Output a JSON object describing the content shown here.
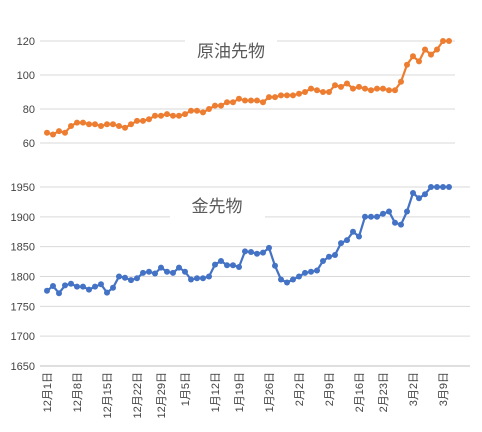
{
  "chart_data": [
    {
      "type": "line",
      "title": "原油先物",
      "ylim": [
        60,
        120
      ],
      "yticks": [
        60,
        80,
        100,
        120
      ],
      "ytick_labels": [
        "60",
        "80",
        "100",
        "120"
      ],
      "color": "#ed7d31",
      "grid": true,
      "series": [
        {
          "x": [
            "12月1日",
            "12月2日",
            "12月3日",
            "12月6日",
            "12月7日",
            "12月8日",
            "12月9日",
            "12月10日",
            "12月13日",
            "12月14日",
            "12月15日",
            "12月16日",
            "12月17日",
            "12月20日",
            "12月21日",
            "12月22日",
            "12月23日",
            "12月27日",
            "12月28日",
            "12月29日",
            "12月30日",
            "12月31日",
            "1月4日",
            "1月5日",
            "1月6日",
            "1月7日",
            "1月10日",
            "1月11日",
            "1月12日",
            "1月13日",
            "1月14日",
            "1月18日",
            "1月19日",
            "1月20日",
            "1月21日",
            "1月24日",
            "1月25日",
            "1月26日",
            "1月27日",
            "1月28日",
            "1月31日",
            "2月1日",
            "2月2日",
            "2月3日",
            "2月4日",
            "2月7日",
            "2月8日",
            "2月9日",
            "2月10日",
            "2月11日",
            "2月14日",
            "2月15日",
            "2月16日",
            "2月17日",
            "2月18日",
            "2月22日",
            "2月23日",
            "2月24日",
            "2月25日",
            "2月28日",
            "3月1日",
            "3月2日",
            "3月3日",
            "3月4日",
            "3月7日",
            "3月8日",
            "3月9日",
            "3月10日"
          ],
          "values": [
            66,
            65,
            67,
            66,
            70,
            72,
            72,
            71,
            71,
            70,
            71,
            71,
            70,
            69,
            71,
            73,
            73,
            74,
            76,
            76,
            77,
            76,
            76,
            77,
            79,
            79,
            78,
            80,
            82,
            82,
            84,
            84,
            86,
            85,
            85,
            85,
            84,
            87,
            87,
            88,
            88,
            88,
            89,
            90,
            92,
            91,
            90,
            90,
            94,
            93,
            95,
            92,
            93,
            92,
            91,
            92,
            92,
            91,
            91,
            96,
            106,
            111,
            108,
            115,
            112,
            115,
            120,
            120
          ]
        }
      ]
    },
    {
      "type": "line",
      "title": "金先物",
      "ylim": [
        1650,
        1950
      ],
      "yticks": [
        1650,
        1700,
        1750,
        1800,
        1850,
        1900,
        1950
      ],
      "ytick_labels": [
        "1650",
        "1700",
        "1750",
        "1800",
        "1850",
        "1900",
        "1950"
      ],
      "color": "#4472c4",
      "grid": true,
      "xtick_labels": [
        "12月1日",
        "12月8日",
        "12月15日",
        "12月22日",
        "12月29日",
        "1月5日",
        "1月12日",
        "1月19日",
        "1月26日",
        "2月2日",
        "2月9日",
        "2月16日",
        "2月23日",
        "3月2日",
        "3月9日"
      ],
      "series": [
        {
          "x": [
            "12月1日",
            "12月2日",
            "12月3日",
            "12月6日",
            "12月7日",
            "12月8日",
            "12月9日",
            "12月10日",
            "12月13日",
            "12月14日",
            "12月15日",
            "12月16日",
            "12月17日",
            "12月20日",
            "12月21日",
            "12月22日",
            "12月23日",
            "12月27日",
            "12月28日",
            "12月29日",
            "12月30日",
            "12月31日",
            "1月4日",
            "1月5日",
            "1月6日",
            "1月7日",
            "1月10日",
            "1月11日",
            "1月12日",
            "1月13日",
            "1月14日",
            "1月18日",
            "1月19日",
            "1月20日",
            "1月21日",
            "1月24日",
            "1月25日",
            "1月26日",
            "1月27日",
            "1月28日",
            "1月31日",
            "2月1日",
            "2月2日",
            "2月3日",
            "2月4日",
            "2月7日",
            "2月8日",
            "2月9日",
            "2月10日",
            "2月11日",
            "2月14日",
            "2月15日",
            "2月16日",
            "2月17日",
            "2月18日",
            "2月22日",
            "2月23日",
            "2月24日",
            "2月25日",
            "2月28日",
            "3月1日",
            "3月2日",
            "3月3日",
            "3月4日",
            "3月7日",
            "3月8日",
            "3月9日",
            "3月10日"
          ],
          "values": [
            1776,
            1784,
            1772,
            1785,
            1788,
            1783,
            1783,
            1778,
            1783,
            1787,
            1773,
            1781,
            1800,
            1798,
            1794,
            1797,
            1806,
            1808,
            1805,
            1815,
            1808,
            1806,
            1815,
            1808,
            1795,
            1797,
            1797,
            1800,
            1820,
            1826,
            1819,
            1819,
            1816,
            1842,
            1841,
            1838,
            1840,
            1848,
            1818,
            1795,
            1790,
            1795,
            1800,
            1806,
            1808,
            1810,
            1826,
            1833,
            1836,
            1856,
            1861,
            1875,
            1867,
            1900,
            1900,
            1900,
            1905,
            1909,
            1890,
            1887,
            1909,
            1940,
            1931,
            1938,
            1965,
            1965,
            1965,
            1963
          ]
        }
      ]
    }
  ]
}
